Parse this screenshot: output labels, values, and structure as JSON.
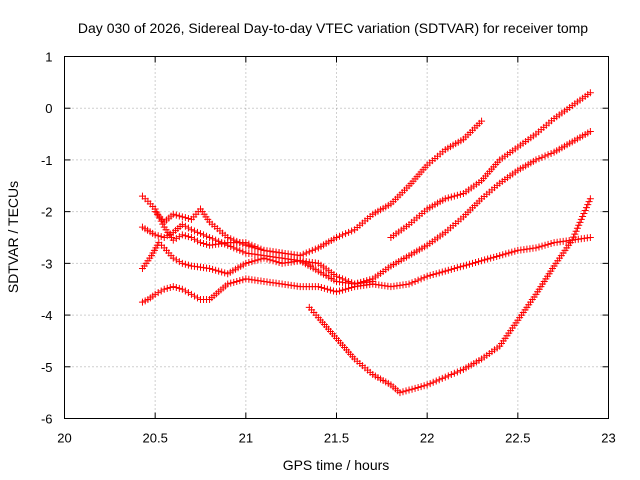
{
  "chart_data": {
    "type": "scatter",
    "title": "Day 030 of 2026, Sidereal Day-to-day VTEC variation (SDTVAR) for receiver tomp",
    "xlabel": "GPS time / hours",
    "ylabel": "SDTVAR / TECUs",
    "xlim": [
      20,
      23
    ],
    "ylim": [
      -6,
      1
    ],
    "xticks": [
      "20",
      "20.5",
      "21",
      "21.5",
      "22",
      "22.5",
      "23"
    ],
    "yticks": [
      "-6",
      "-5",
      "-4",
      "-3",
      "-2",
      "-1",
      "0",
      "1"
    ],
    "grid": true,
    "marker": "+",
    "color": "#ff0000",
    "series": [
      {
        "x": [
          20.43,
          20.46,
          20.5,
          20.55,
          20.6,
          20.65,
          20.7,
          20.75,
          20.8,
          20.9,
          21.0,
          21.1,
          21.2,
          21.3,
          21.4,
          21.5,
          21.6,
          21.7,
          21.8,
          21.9,
          22.0,
          22.1,
          22.2,
          22.3
        ],
        "y": [
          -1.7,
          -1.8,
          -1.95,
          -2.3,
          -2.55,
          -2.45,
          -2.5,
          -2.6,
          -2.65,
          -2.6,
          -2.6,
          -2.75,
          -2.8,
          -2.85,
          -2.7,
          -2.5,
          -2.35,
          -2.05,
          -1.85,
          -1.5,
          -1.1,
          -0.8,
          -0.6,
          -0.25
        ]
      },
      {
        "x": [
          20.43,
          20.46,
          20.5,
          20.55,
          20.6,
          20.65,
          20.7,
          20.75,
          20.8,
          20.85,
          20.9,
          21.0,
          21.1,
          21.2,
          21.3,
          21.4,
          21.5,
          21.6,
          21.7,
          21.8,
          21.9,
          22.0,
          22.1,
          22.2,
          22.3,
          22.4,
          22.5,
          22.6,
          22.7,
          22.8,
          22.9
        ],
        "y": [
          -3.75,
          -3.7,
          -3.6,
          -3.5,
          -3.45,
          -3.5,
          -3.6,
          -3.7,
          -3.7,
          -3.55,
          -3.4,
          -3.3,
          -3.35,
          -3.4,
          -3.45,
          -3.45,
          -3.55,
          -3.45,
          -3.4,
          -3.45,
          -3.4,
          -3.25,
          -3.15,
          -3.05,
          -2.95,
          -2.85,
          -2.75,
          -2.7,
          -2.6,
          -2.55,
          -2.5
        ]
      },
      {
        "x": [
          20.43,
          20.5,
          20.55,
          20.6,
          20.65,
          20.7,
          20.8,
          20.9,
          21.0,
          21.1,
          21.2,
          21.3,
          21.4,
          21.5,
          21.6,
          21.7,
          21.8,
          21.9,
          22.0,
          22.1,
          22.2,
          22.3,
          22.4,
          22.5,
          22.6,
          22.7,
          22.8,
          22.9
        ],
        "y": [
          -2.3,
          -2.45,
          -2.5,
          -2.4,
          -2.25,
          -2.35,
          -2.5,
          -2.65,
          -2.8,
          -2.85,
          -2.9,
          -2.95,
          -3.15,
          -3.35,
          -3.4,
          -3.3,
          -3.05,
          -2.85,
          -2.65,
          -2.4,
          -2.1,
          -1.75,
          -1.45,
          -1.2,
          -1.0,
          -0.85,
          -0.65,
          -0.45
        ]
      },
      {
        "x": [
          20.43,
          20.48,
          20.52,
          20.55,
          20.6,
          20.65,
          20.7,
          20.8,
          20.9,
          21.0,
          21.1,
          21.2,
          21.3,
          21.4,
          21.5,
          21.6,
          21.7
        ],
        "y": [
          -3.1,
          -2.85,
          -2.6,
          -2.7,
          -2.9,
          -3.0,
          -3.05,
          -3.1,
          -3.2,
          -3.0,
          -2.9,
          -3.0,
          -2.95,
          -3.0,
          -3.25,
          -3.4,
          -3.35
        ]
      },
      {
        "x": [
          20.5,
          20.55,
          20.6,
          20.7,
          20.75,
          20.8,
          20.9,
          21.0,
          21.1,
          21.2
        ],
        "y": [
          -2.0,
          -2.2,
          -2.05,
          -2.15,
          -1.95,
          -2.2,
          -2.5,
          -2.65,
          -2.75,
          -2.8
        ]
      },
      {
        "x": [
          21.35,
          21.4,
          21.5,
          21.6,
          21.7,
          21.8,
          21.85,
          21.9,
          22.0,
          22.1,
          22.2,
          22.3,
          22.4,
          22.5,
          22.6,
          22.7,
          22.8,
          22.9
        ],
        "y": [
          -3.85,
          -4.05,
          -4.45,
          -4.85,
          -5.15,
          -5.35,
          -5.5,
          -5.45,
          -5.35,
          -5.2,
          -5.05,
          -4.85,
          -4.6,
          -4.1,
          -3.6,
          -3.05,
          -2.55,
          -1.75
        ]
      },
      {
        "x": [
          21.8,
          21.9,
          22.0,
          22.1,
          22.2,
          22.3,
          22.4,
          22.5,
          22.6,
          22.7,
          22.8,
          22.9
        ],
        "y": [
          -2.5,
          -2.25,
          -1.95,
          -1.75,
          -1.65,
          -1.4,
          -1.0,
          -0.75,
          -0.5,
          -0.2,
          0.05,
          0.3
        ]
      }
    ]
  }
}
